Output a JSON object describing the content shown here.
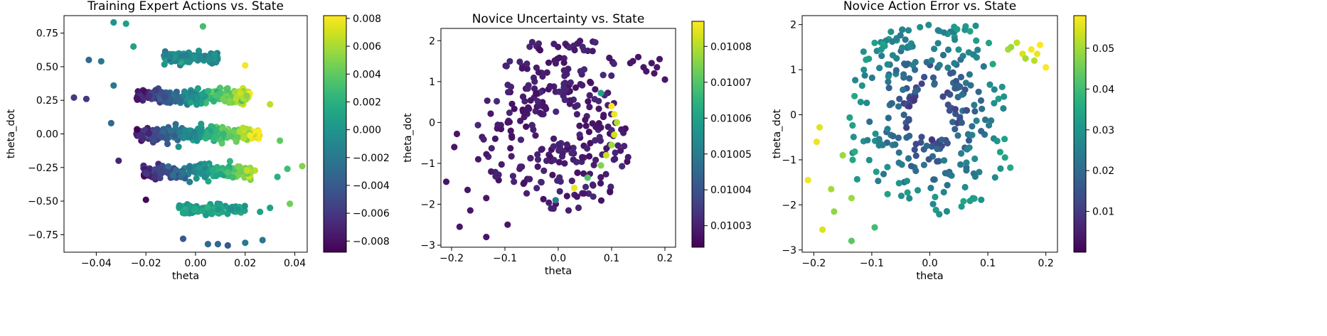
{
  "chart_data": [
    {
      "type": "scatter",
      "title": "Training Expert Actions vs. State",
      "xlabel": "theta",
      "ylabel": "theta_dot",
      "xlim": [
        -0.053,
        0.045
      ],
      "ylim": [
        -0.88,
        0.88
      ],
      "xticks": [
        -0.04,
        -0.02,
        0.0,
        0.02,
        0.04
      ],
      "xtick_labels": [
        "−0.04",
        "−0.02",
        "0.00",
        "0.02",
        "0.04"
      ],
      "yticks": [
        -0.75,
        -0.5,
        -0.25,
        0.0,
        0.25,
        0.5,
        0.75
      ],
      "ytick_labels": [
        "−0.75",
        "−0.50",
        "−0.25",
        "0.00",
        "0.25",
        "0.50",
        "0.75"
      ],
      "colorbar": {
        "cmap": "viridis",
        "range": [
          -0.0088,
          0.0082
        ],
        "ticks": [
          0.008,
          0.006,
          0.004,
          0.002,
          0.0,
          -0.002,
          -0.004,
          -0.006,
          -0.008
        ],
        "tick_labels": [
          "0.008",
          "0.006",
          "0.004",
          "0.002",
          "0.000",
          "−0.002",
          "−0.004",
          "−0.006",
          "−0.008"
        ]
      },
      "clusters": [
        {
          "y": 0.57,
          "spread_y": 0.035,
          "x_min": -0.013,
          "x_max": 0.009,
          "n": 120,
          "slope": 0.0,
          "base": -0.0005
        },
        {
          "y": 0.28,
          "spread_y": 0.045,
          "x_min": -0.024,
          "x_max": 0.022,
          "n": 230,
          "slope": 0.33,
          "base": 0.0
        },
        {
          "y": 0.0,
          "spread_y": 0.045,
          "x_min": -0.024,
          "x_max": 0.026,
          "n": 240,
          "slope": 0.3,
          "base": 0.0
        },
        {
          "y": -0.28,
          "spread_y": 0.045,
          "x_min": -0.021,
          "x_max": 0.024,
          "n": 210,
          "slope": 0.3,
          "base": -0.001
        },
        {
          "y": -0.56,
          "spread_y": 0.035,
          "x_min": -0.007,
          "x_max": 0.02,
          "n": 110,
          "slope": 0.0,
          "base": 0.0008
        }
      ],
      "points": [
        {
          "x": -0.033,
          "y": 0.83,
          "c": 0.0
        },
        {
          "x": -0.028,
          "y": 0.82,
          "c": 0.0008
        },
        {
          "x": 0.003,
          "y": 0.8,
          "c": 0.003
        },
        {
          "x": -0.025,
          "y": 0.65,
          "c": 0.001
        },
        {
          "x": -0.043,
          "y": 0.55,
          "c": -0.003
        },
        {
          "x": -0.038,
          "y": 0.54,
          "c": -0.002
        },
        {
          "x": 0.02,
          "y": 0.51,
          "c": 0.008
        },
        {
          "x": -0.033,
          "y": 0.36,
          "c": -0.002
        },
        {
          "x": -0.049,
          "y": 0.27,
          "c": -0.006
        },
        {
          "x": -0.044,
          "y": 0.26,
          "c": -0.006
        },
        {
          "x": 0.03,
          "y": 0.22,
          "c": 0.0065
        },
        {
          "x": -0.034,
          "y": 0.08,
          "c": -0.003
        },
        {
          "x": 0.034,
          "y": -0.05,
          "c": 0.004
        },
        {
          "x": -0.031,
          "y": -0.2,
          "c": -0.007
        },
        {
          "x": 0.043,
          "y": -0.24,
          "c": 0.005
        },
        {
          "x": 0.037,
          "y": -0.26,
          "c": 0.003
        },
        {
          "x": 0.033,
          "y": -0.32,
          "c": 0.002
        },
        {
          "x": -0.02,
          "y": -0.49,
          "c": -0.0085
        },
        {
          "x": 0.038,
          "y": -0.52,
          "c": 0.0045
        },
        {
          "x": 0.03,
          "y": -0.55,
          "c": 0.001
        },
        {
          "x": 0.026,
          "y": -0.58,
          "c": 0.001
        },
        {
          "x": -0.005,
          "y": -0.78,
          "c": -0.004
        },
        {
          "x": 0.005,
          "y": -0.82,
          "c": -0.003
        },
        {
          "x": 0.009,
          "y": -0.82,
          "c": -0.003
        },
        {
          "x": 0.013,
          "y": -0.83,
          "c": -0.004
        },
        {
          "x": 0.02,
          "y": -0.81,
          "c": -0.002
        },
        {
          "x": 0.027,
          "y": -0.79,
          "c": -0.002
        }
      ]
    },
    {
      "type": "scatter",
      "title": "Novice Uncertainty vs. State",
      "xlabel": "theta",
      "ylabel": "theta_dot",
      "xlim": [
        -0.22,
        0.22
      ],
      "ylim": [
        -3.05,
        2.3
      ],
      "xticks": [
        -0.2,
        -0.1,
        0.0,
        0.1,
        0.2
      ],
      "xtick_labels": [
        "−0.2",
        "−0.1",
        "0.0",
        "0.1",
        "0.2"
      ],
      "yticks": [
        -3,
        -2,
        -1,
        0,
        1,
        2
      ],
      "ytick_labels": [
        "−3",
        "−2",
        "−1",
        "0",
        "1",
        "2"
      ],
      "colorbar": {
        "cmap": "viridis",
        "range": [
          0.010024,
          0.010087
        ],
        "ticks": [
          0.01008,
          0.01007,
          0.01006,
          0.01005,
          0.01004,
          0.01003
        ],
        "tick_labels": [
          "0.01008",
          "0.01007",
          "0.01006",
          "0.01005",
          "0.01004",
          "0.01003"
        ]
      },
      "spiral_scale": [
        1,
        1
      ],
      "spiral_n": 300,
      "bright_points": [
        {
          "x": 0.1,
          "y": 0.4,
          "c": 0.010087
        },
        {
          "x": 0.105,
          "y": 0.2,
          "c": 0.010085
        },
        {
          "x": 0.11,
          "y": 0.0,
          "c": 0.01008
        },
        {
          "x": 0.105,
          "y": -0.3,
          "c": 0.010083
        },
        {
          "x": 0.1,
          "y": -0.55,
          "c": 0.010078
        },
        {
          "x": 0.09,
          "y": -0.8,
          "c": 0.010082
        },
        {
          "x": 0.08,
          "y": -1.05,
          "c": 0.010075
        },
        {
          "x": 0.03,
          "y": -1.6,
          "c": 0.010085
        },
        {
          "x": 0.08,
          "y": 0.72,
          "c": 0.01006
        },
        {
          "x": -0.005,
          "y": -1.9,
          "c": 0.01005
        },
        {
          "x": 0.055,
          "y": -1.35,
          "c": 0.01007
        }
      ]
    },
    {
      "type": "scatter",
      "title": "Novice Action Error vs. State",
      "xlabel": "theta",
      "ylabel": "theta_dot",
      "xlim": [
        -0.22,
        0.22
      ],
      "ylim": [
        -3.05,
        2.2
      ],
      "xticks": [
        -0.2,
        -0.1,
        0.0,
        0.1,
        0.2
      ],
      "xtick_labels": [
        "−0.2",
        "−0.1",
        "0.0",
        "0.1",
        "0.2"
      ],
      "yticks": [
        -3,
        -2,
        -1,
        0,
        1,
        2
      ],
      "ytick_labels": [
        "−3",
        "−2",
        "−1",
        "0",
        "1",
        "2"
      ],
      "colorbar": {
        "cmap": "viridis",
        "range": [
          0.0,
          0.058
        ],
        "ticks": [
          0.05,
          0.04,
          0.03,
          0.02,
          0.01
        ],
        "tick_labels": [
          "0.05",
          "0.04",
          "0.03",
          "0.02",
          "0.01"
        ]
      },
      "spiral_scale": [
        1,
        1
      ],
      "spiral_n": 300
    }
  ]
}
